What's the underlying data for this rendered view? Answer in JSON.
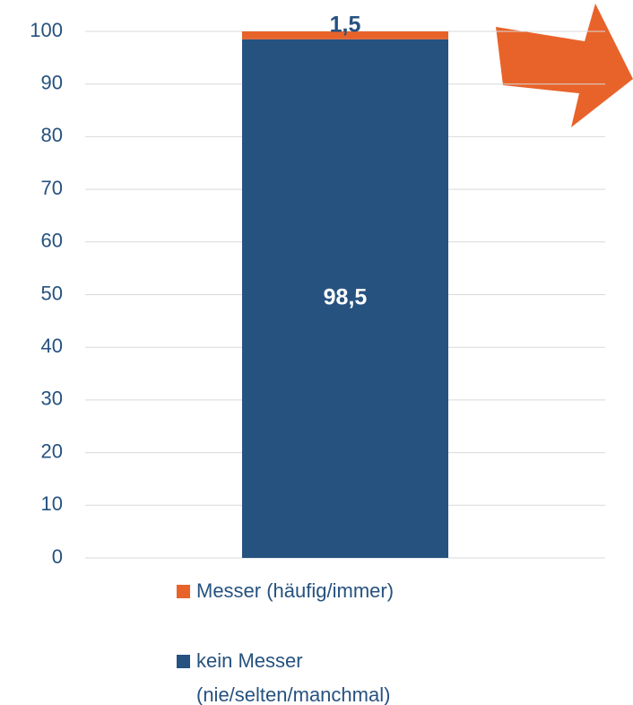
{
  "chart_data": {
    "type": "stacked_bar",
    "categories": [
      null
    ],
    "series": [
      {
        "name": "kein Messer (nie/selten/manchmal)",
        "color": "#26527f",
        "values": [
          98.5
        ],
        "value_labels": [
          "98,5"
        ]
      },
      {
        "name": "Messer (häufig/immer)",
        "color": "#e8632a",
        "values": [
          1.5
        ],
        "value_labels": [
          "1,5"
        ]
      }
    ],
    "ylim": [
      0,
      100
    ],
    "yticks": [
      0,
      10,
      20,
      30,
      40,
      50,
      60,
      70,
      80,
      90,
      100
    ],
    "grid": true
  }
}
